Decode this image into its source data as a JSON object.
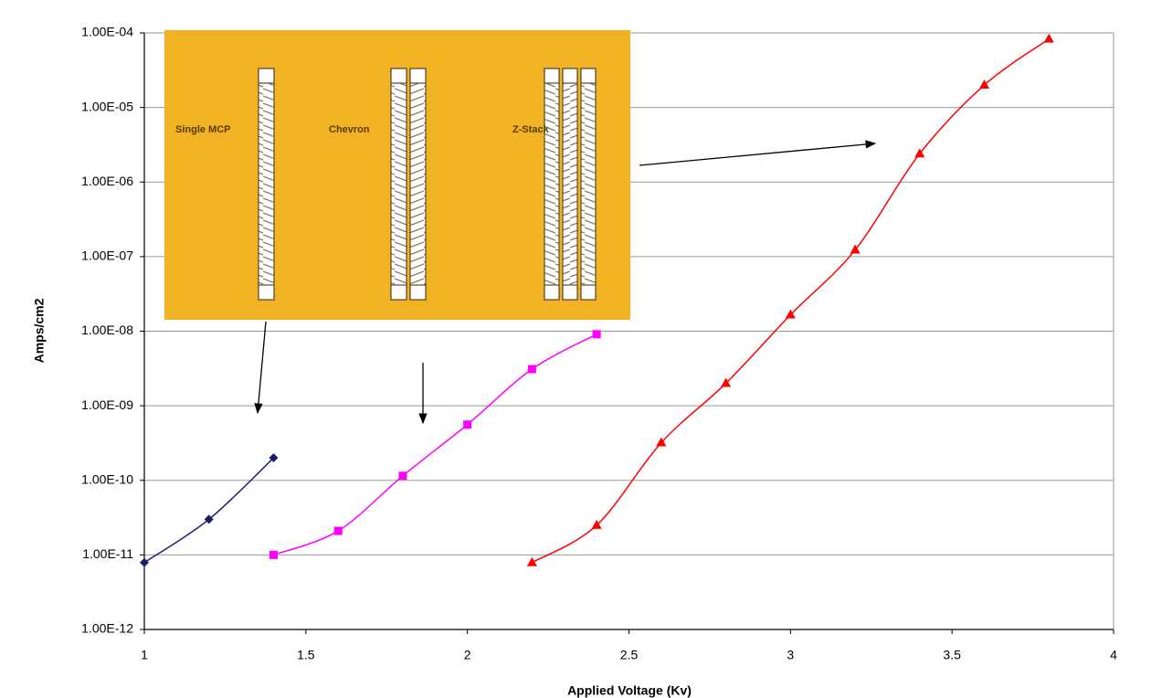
{
  "chart_data": {
    "type": "line",
    "yscale": "log",
    "grid": true,
    "x_label": "Applied Voltage (Kv)",
    "y_label": "Amps/cm2",
    "xlim": [
      1,
      4
    ],
    "xticks": [
      1,
      1.5,
      2,
      2.5,
      3,
      3.5,
      4
    ],
    "ylim": [
      1e-12,
      0.0001
    ],
    "yticks": [
      {
        "value": 1e-12,
        "label": "1.00E-12"
      },
      {
        "value": 1e-11,
        "label": "1.00E-11"
      },
      {
        "value": 1e-10,
        "label": "1.00E-10"
      },
      {
        "value": 1e-09,
        "label": "1.00E-09"
      },
      {
        "value": 1e-08,
        "label": "1.00E-08"
      },
      {
        "value": 1e-07,
        "label": "1.00E-07"
      },
      {
        "value": 1e-06,
        "label": "1.00E-06"
      },
      {
        "value": 1e-05,
        "label": "1.00E-05"
      },
      {
        "value": 0.0001,
        "label": "1.00E-04"
      }
    ],
    "series": [
      {
        "color": "#1c1c6e",
        "marker": "diamond",
        "x": [
          1,
          1.2,
          1.4
        ],
        "values": [
          7.9e-12,
          3e-11,
          2e-10
        ]
      },
      {
        "color": "#ff00ff",
        "marker": "square",
        "x": [
          1.4,
          1.6,
          1.8,
          2.0,
          2.2,
          2.4
        ],
        "values": [
          1e-11,
          2.1e-11,
          1.15e-10,
          5.6e-10,
          3.1e-09,
          9.1e-09
        ]
      },
      {
        "color": "#ff0000",
        "marker": "triangle",
        "x": [
          2.2,
          2.4,
          2.6,
          2.8,
          3.0,
          3.2,
          3.4,
          3.6,
          3.8
        ],
        "values": [
          7.9e-12,
          2.5e-11,
          3.2e-10,
          2e-09,
          1.66e-08,
          1.23e-07,
          2.4e-06,
          2e-05,
          8.3e-05
        ]
      }
    ],
    "inset": {
      "labels": [
        "Single MCP",
        "Chevron",
        "Z-Stack"
      ]
    }
  }
}
